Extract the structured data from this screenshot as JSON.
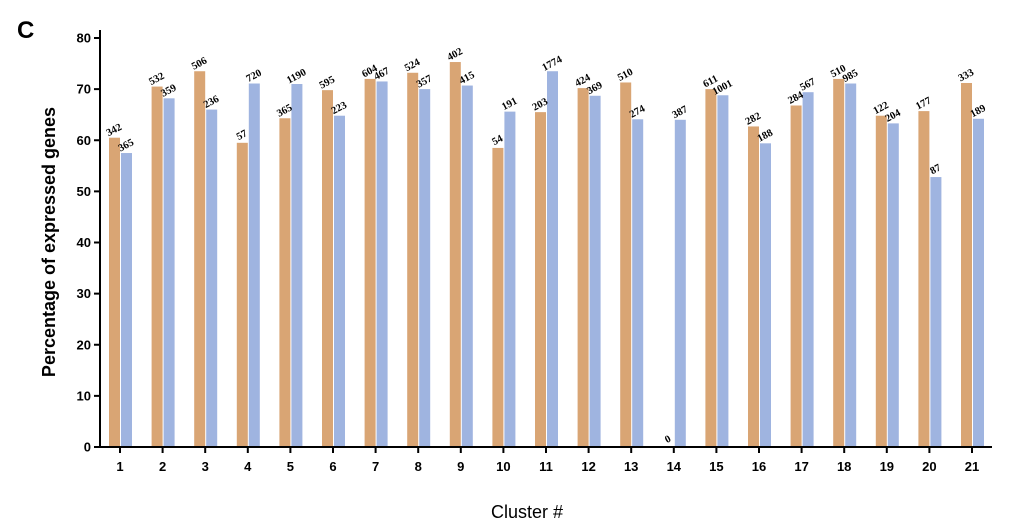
{
  "panel_label": "C",
  "colors": {
    "series_a": "#d9a574",
    "series_b": "#9fb4e0",
    "axis": "#000000"
  },
  "chart_data": {
    "type": "bar",
    "xlabel": "Cluster #",
    "ylabel": "Percentage of expressed genes",
    "ylim": [
      0,
      80
    ],
    "yticks": [
      0,
      10,
      20,
      30,
      40,
      50,
      60,
      70,
      80
    ],
    "grid": false,
    "categories": [
      "1",
      "2",
      "3",
      "4",
      "5",
      "6",
      "7",
      "8",
      "9",
      "10",
      "11",
      "12",
      "13",
      "14",
      "15",
      "16",
      "17",
      "18",
      "19",
      "20",
      "21"
    ],
    "series": [
      {
        "values": [
          60.5,
          70.5,
          73.5,
          59.5,
          64.3,
          69.8,
          72.0,
          73.2,
          75.3,
          58.5,
          65.5,
          70.2,
          71.3,
          0,
          70.0,
          62.7,
          66.8,
          72.0,
          64.8,
          65.7,
          71.2
        ],
        "labels": [
          "342",
          "532",
          "506",
          "57",
          "365",
          "595",
          "604",
          "524",
          "402",
          "54",
          "203",
          "424",
          "510",
          "0",
          "611",
          "282",
          "284",
          "510",
          "122",
          "177",
          "333"
        ]
      },
      {
        "values": [
          57.5,
          68.2,
          66.0,
          71.1,
          71.0,
          64.8,
          71.5,
          70.0,
          70.7,
          65.6,
          73.5,
          68.7,
          64.1,
          64.0,
          68.8,
          59.4,
          69.4,
          71.1,
          63.3,
          52.8,
          64.2
        ],
        "labels": [
          "365",
          "359",
          "236",
          "720",
          "1190",
          "223",
          "467",
          "357",
          "415",
          "191",
          "1774",
          "369",
          "274",
          "387",
          "1001",
          "188",
          "567",
          "985",
          "204",
          "87",
          "189"
        ]
      }
    ]
  }
}
